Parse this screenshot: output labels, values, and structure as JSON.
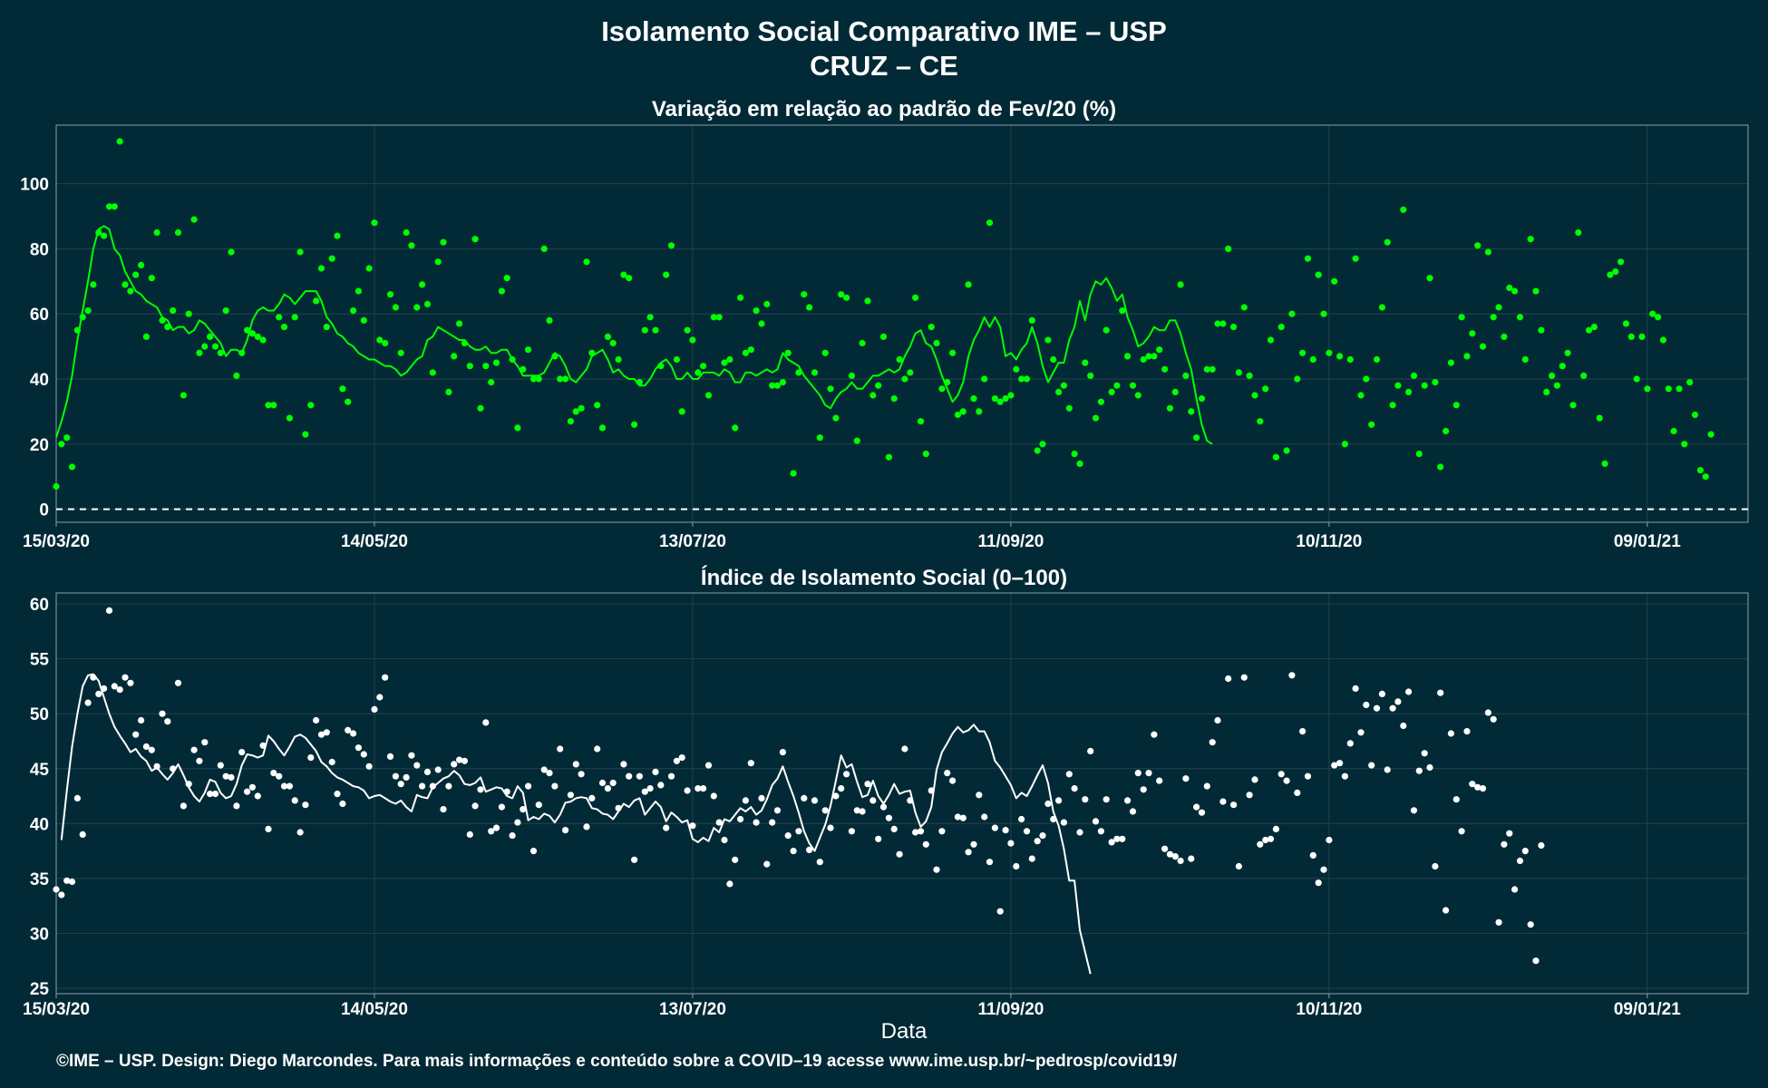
{
  "title": "Isolamento Social Comparativo IME – USP",
  "subtitle": "CRUZ – CE",
  "xlabel": "Data",
  "caption": "©IME – USP. Design: Diego Marcondes. Para mais informações e conteúdo sobre a COVID–19 acesse www.ime.usp.br/~pedrosp/covid19/",
  "colors": {
    "background": "#022a36",
    "panel1_series": "#00ff00",
    "panel2_series": "#ffffff"
  },
  "chart_data": [
    {
      "type": "scatter",
      "title": "Variação em relação ao padrão de Fev/20 (%)",
      "x_type": "date",
      "x_range": [
        "2020-03-15",
        "2021-01-28"
      ],
      "x_ticks": [
        "15/03/20",
        "14/05/20",
        "13/07/20",
        "11/09/20",
        "10/11/20",
        "09/01/21"
      ],
      "x_tick_dates": [
        "2020-03-15",
        "2020-05-14",
        "2020-07-13",
        "2020-09-11",
        "2020-11-10",
        "2021-01-09"
      ],
      "ylim": [
        -4,
        118
      ],
      "y_ticks": [
        0,
        20,
        40,
        60,
        80,
        100
      ],
      "grid": true,
      "reference_line": 0,
      "series": [
        {
          "kind": "points",
          "values": [
            7,
            20,
            22,
            13,
            55,
            59,
            61,
            69,
            85,
            84,
            93,
            93,
            113,
            69,
            67,
            72,
            75,
            53,
            71,
            85,
            58,
            56,
            61,
            85,
            35,
            60,
            89,
            48,
            50,
            53,
            50,
            48,
            61,
            79,
            41,
            48,
            55,
            54,
            53,
            52,
            32,
            32,
            59,
            56,
            28,
            59,
            79,
            23,
            32,
            64,
            74,
            56,
            77,
            84,
            37,
            33,
            61,
            67,
            58,
            74,
            88,
            52,
            51,
            66,
            62,
            48,
            85,
            81,
            62,
            69,
            63,
            42,
            76,
            82,
            36,
            47,
            57,
            51,
            44,
            83,
            31,
            44,
            39,
            45,
            67,
            71,
            46,
            25,
            43,
            49,
            40,
            40,
            80,
            58,
            47,
            40,
            40,
            27,
            30,
            31,
            76,
            48,
            32,
            25,
            53,
            51,
            46,
            72,
            71,
            26,
            39,
            55,
            59,
            55,
            44,
            72,
            81,
            46,
            30,
            55,
            52,
            42,
            44,
            35,
            59,
            59,
            45,
            46,
            25,
            65,
            48,
            49,
            61,
            57,
            63,
            38,
            38,
            39,
            48,
            11,
            42,
            66,
            62,
            42,
            22,
            48,
            37,
            28,
            66,
            65,
            41,
            21,
            51,
            64,
            35,
            38,
            53,
            16,
            34,
            46,
            40,
            42,
            65,
            27,
            17,
            56,
            51,
            37,
            39,
            48,
            29,
            30,
            69,
            34,
            30,
            40,
            88,
            34,
            33,
            34,
            35,
            43,
            40,
            40,
            58,
            18,
            20,
            52,
            46,
            36,
            38,
            31,
            17,
            14,
            45,
            41,
            28,
            33,
            55,
            36,
            38,
            61,
            47,
            38,
            35,
            46,
            47,
            47,
            49,
            43,
            31,
            36,
            69,
            41,
            30,
            22,
            34,
            43,
            43,
            57,
            57,
            80,
            56,
            42,
            62,
            41,
            35,
            27,
            37,
            52,
            16,
            56,
            18,
            60,
            40,
            48,
            77,
            46,
            72,
            60,
            48,
            70,
            47,
            20,
            46,
            77,
            35,
            40,
            26,
            46,
            62,
            82,
            32,
            38,
            92,
            36,
            41,
            17,
            38,
            71,
            39,
            13,
            24,
            45,
            32,
            59,
            47,
            54,
            81,
            50,
            79,
            59,
            62,
            53,
            68,
            67,
            59,
            46,
            83,
            67,
            55,
            36,
            41,
            38,
            44,
            48,
            32,
            85,
            41,
            55,
            56,
            28,
            14,
            72,
            73,
            76,
            57,
            53,
            40,
            53,
            37,
            60,
            59,
            52,
            37,
            24,
            37,
            20,
            39,
            29,
            12,
            10,
            23
          ],
          "x_start": "2020-03-15"
        },
        {
          "kind": "moving-average",
          "values": [
            22,
            27,
            33,
            41,
            52,
            61,
            70,
            80,
            86,
            87,
            86,
            80,
            78,
            73,
            70,
            67,
            66,
            64,
            63,
            62,
            59,
            58,
            55,
            56,
            56,
            54,
            55,
            58,
            57,
            55,
            53,
            51,
            47,
            49,
            49,
            48,
            52,
            58,
            61,
            62,
            61,
            61,
            63,
            66,
            65,
            63,
            65,
            67,
            67,
            67,
            64,
            59,
            57,
            54,
            53,
            51,
            50,
            48,
            47,
            46,
            46,
            45,
            44,
            44,
            43,
            41,
            42,
            44,
            46,
            47,
            52,
            53,
            56,
            55,
            54,
            53,
            52,
            52,
            50,
            49,
            49,
            50,
            48,
            48,
            49,
            49,
            46,
            44,
            41,
            41,
            41,
            41,
            42,
            45,
            48,
            47,
            44,
            40,
            39,
            41,
            43,
            47,
            48,
            49,
            46,
            42,
            43,
            41,
            40,
            40,
            38,
            38,
            40,
            43,
            45,
            46,
            44,
            40,
            40,
            42,
            40,
            40,
            42,
            42,
            42,
            41,
            43,
            42,
            39,
            39,
            42,
            42,
            41,
            42,
            43,
            42,
            43,
            48,
            46,
            45,
            44,
            41,
            39,
            37,
            35,
            32,
            31,
            34,
            36,
            37,
            39,
            37,
            37,
            39,
            41,
            41,
            42,
            43,
            42,
            43,
            47,
            50,
            54,
            55,
            51,
            50,
            46,
            41,
            37,
            33,
            35,
            39,
            47,
            52,
            55,
            59,
            56,
            59,
            56,
            47,
            48,
            46,
            49,
            51,
            56,
            51,
            44,
            39,
            42,
            45,
            45,
            52,
            56,
            64,
            58,
            66,
            70,
            69,
            71,
            68,
            64,
            66,
            59,
            55,
            50,
            51,
            53,
            56,
            55,
            55,
            58,
            58,
            54,
            48,
            43,
            34,
            26,
            21,
            20
          ],
          "x_start": "2020-03-15"
        }
      ]
    },
    {
      "type": "scatter",
      "title": "Índice de Isolamento Social (0–100)",
      "x_type": "date",
      "x_range": [
        "2020-03-15",
        "2021-01-28"
      ],
      "x_ticks": [
        "15/03/20",
        "14/05/20",
        "13/07/20",
        "11/09/20",
        "10/11/20",
        "09/01/21"
      ],
      "x_tick_dates": [
        "2020-03-15",
        "2020-05-14",
        "2020-07-13",
        "2020-09-11",
        "2020-11-10",
        "2021-01-09"
      ],
      "ylim": [
        24.5,
        61
      ],
      "y_ticks": [
        25,
        30,
        35,
        40,
        45,
        50,
        55,
        60
      ],
      "grid": true,
      "series": [
        {
          "kind": "points",
          "values": [
            34,
            33.5,
            34.8,
            34.7,
            42.3,
            39,
            51,
            53.3,
            51.8,
            52.3,
            59.4,
            52.5,
            52.2,
            53.3,
            52.8,
            48.1,
            49.4,
            47,
            46.7,
            45.2,
            50,
            49.3,
            45,
            52.8,
            41.6,
            43.6,
            46.7,
            45.7,
            47.4,
            42.7,
            42.7,
            45.3,
            44.3,
            44.2,
            41.6,
            46.5,
            42.9,
            43.3,
            42.5,
            47.1,
            39.5,
            44.6,
            44.3,
            43.4,
            43.4,
            42.1,
            39.2,
            41.7,
            46,
            49.4,
            48.1,
            48.3,
            45.6,
            42.7,
            41.8,
            48.5,
            48.2,
            46.9,
            46.3,
            45.2,
            50.4,
            51.5,
            53.3,
            46.1,
            44.3,
            43.6,
            44.2,
            46.2,
            45.3,
            43.4,
            44.7,
            43.4,
            44.9,
            41.3,
            43.4,
            45.4,
            45.8,
            45.7,
            39,
            41.6,
            43.1,
            49.2,
            39.3,
            39.6,
            41.5,
            42.9,
            38.9,
            40.1,
            41.3,
            43.4,
            37.5,
            41.7,
            44.9,
            44.6,
            43.4,
            46.8,
            39.4,
            42.6,
            45.4,
            44.5,
            39.7,
            42.3,
            46.8,
            43.7,
            43.2,
            43.7,
            41.4,
            45.4,
            44.3,
            36.7,
            44.3,
            42.9,
            43.2,
            44.7,
            43.5,
            39.6,
            44.3,
            45.7,
            46,
            43,
            39.8,
            43.2,
            43.2,
            45.3,
            42.5,
            40.1,
            38.5,
            34.5,
            36.7,
            40.4,
            42.1,
            45.5,
            40.1,
            42.3,
            36.3,
            40.1,
            41.2,
            46.5,
            38.9,
            37.5,
            39.3,
            42.3,
            37.6,
            42.1,
            36.5,
            41.2,
            39.6,
            42.5,
            43.2,
            44.5,
            39.3,
            41.2,
            41.1,
            43.6,
            42.1,
            38.6,
            41.5,
            40.5,
            39.5,
            37.2,
            46.8,
            42.1,
            39.2,
            39.3,
            38.1,
            43,
            35.8,
            39.3,
            44.6,
            43.9,
            40.6,
            40.5,
            37.4,
            38.1,
            42.6,
            40.6,
            36.5,
            39.6,
            32,
            39.4,
            38.2,
            36.1,
            40.4,
            39.3,
            36.8,
            38.4,
            38.9,
            41.8,
            40.4,
            42.1,
            40.1,
            44.5,
            43.2,
            39.2,
            42.2,
            46.6,
            40.2,
            39.3,
            42.2,
            38.3,
            38.6,
            38.6,
            42.1,
            41.1,
            44.6,
            43.1,
            44.6,
            48.1,
            43.9,
            37.7,
            37.2,
            37,
            36.6,
            44.1,
            36.8,
            41.5,
            41,
            43.4,
            47.4,
            49.4,
            42,
            53.2,
            41.7,
            36.1,
            53.3,
            42.6,
            44,
            38.1,
            38.5,
            38.6,
            39.5,
            44.5,
            43.9,
            53.5,
            42.8,
            48.4,
            44.3,
            37.1,
            34.6,
            35.8,
            38.5,
            45.3,
            45.5,
            44.3,
            47.3,
            52.3,
            48.3,
            50.8,
            45.3,
            50.5,
            51.8,
            44.9,
            50.5,
            51.1,
            48.9,
            52,
            41.2,
            44.8,
            46.4,
            45.1,
            36.1,
            51.9,
            32.1,
            48.2,
            42.2,
            39.3,
            48.4,
            43.6,
            43.3,
            43.2,
            50.1,
            49.5,
            31,
            38.1,
            39.1,
            34,
            36.6,
            37.5,
            30.8,
            27.5,
            38
          ],
          "x_start": "2020-03-15"
        },
        {
          "kind": "moving-average",
          "values": [
            38.5,
            43,
            47,
            50,
            52.5,
            53.5,
            53.6,
            53,
            51.5,
            50,
            48.8,
            48,
            47.3,
            46.5,
            46.8,
            46.1,
            45.7,
            44.8,
            45.1,
            44.5,
            44,
            44.6,
            45.4,
            44.4,
            43.3,
            42.5,
            42,
            42.8,
            44,
            43.8,
            42.8,
            42.3,
            42.5,
            43.6,
            45.3,
            46.3,
            46.2,
            46,
            46.2,
            48,
            47.5,
            46.8,
            46.2,
            47,
            47.9,
            48.1,
            47.8,
            47.2,
            46.6,
            45.6,
            45.2,
            44.6,
            44.2,
            44,
            43.7,
            43.4,
            43.3,
            43,
            42.3,
            42.5,
            42.6,
            42.3,
            42,
            41.8,
            42.1,
            41.5,
            41.1,
            42.6,
            42.4,
            42.3,
            43.3,
            43.7,
            44.1,
            44.3,
            44.8,
            44.4,
            43.6,
            43.5,
            43.7,
            44.2,
            42.9,
            43.1,
            43.3,
            43.2,
            42.5,
            42.3,
            43.4,
            42.8,
            40.3,
            40.6,
            40.4,
            40.9,
            40.7,
            40.1,
            40.8,
            41.9,
            42,
            42.3,
            42.4,
            42.3,
            41.4,
            41.3,
            40.9,
            40.8,
            40.4,
            41.1,
            41.8,
            41.5,
            42.1,
            42.3,
            40.8,
            41.4,
            42,
            41.5,
            40.2,
            41,
            40.6,
            40.1,
            40.3,
            38.6,
            38.3,
            38.7,
            38.4,
            39.6,
            39.2,
            40.4,
            40.2,
            40.8,
            41.4,
            41.1,
            41.5,
            40.8,
            41.2,
            42.2,
            43.5,
            44.1,
            45.2,
            43.8,
            42.5,
            41,
            39.3,
            38.2,
            37.5,
            38.7,
            39.9,
            41.6,
            43.9,
            46.2,
            45.1,
            45.4,
            43.8,
            42.4,
            42.6,
            43.9,
            42.5,
            41.8,
            42.6,
            43.6,
            42.7,
            42.9,
            43,
            41,
            39.7,
            40.2,
            41.5,
            44.9,
            46.5,
            47.3,
            48.2,
            48.8,
            48.3,
            48.5,
            49,
            48.4,
            48.4,
            47.4,
            45.7,
            45.1,
            44.3,
            43.5,
            42.3,
            42.8,
            42.5,
            43.4,
            44.4,
            45.3,
            43.7,
            41.1,
            39.8,
            37.7,
            34.8,
            34.8,
            30.3,
            28.3,
            26.3
          ],
          "x_start": "2020-03-16"
        }
      ]
    }
  ]
}
